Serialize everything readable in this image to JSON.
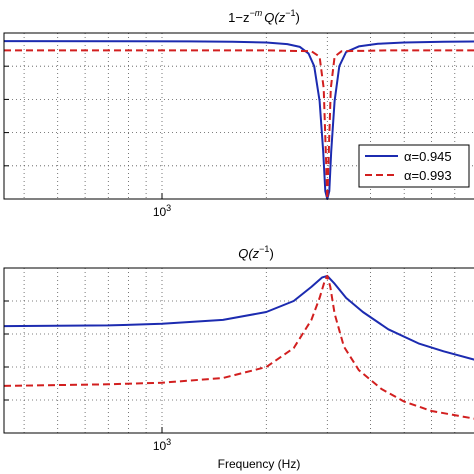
{
  "figure": {
    "xlabel": "Frequency (Hz)"
  },
  "chart_data": [
    {
      "type": "line",
      "title_parts": [
        "1−z",
        "−m",
        "Q(z",
        "−1",
        ")"
      ],
      "xscale": "log",
      "xlim": [
        350,
        8500
      ],
      "ylim": [
        0,
        1.05
      ],
      "grid": true,
      "legend_position": "bottom-right",
      "x_ticks": [
        {
          "base": "10",
          "exp": "3",
          "value": 1000
        }
      ],
      "series": [
        {
          "name": "α=0.945",
          "color": "#1c2bb0",
          "dash": "solid",
          "points": [
            [
              350,
              0.999
            ],
            [
              800,
              0.998
            ],
            [
              1200,
              0.997
            ],
            [
              1600,
              0.995
            ],
            [
              2000,
              0.99
            ],
            [
              2300,
              0.98
            ],
            [
              2500,
              0.962
            ],
            [
              2650,
              0.92
            ],
            [
              2750,
              0.84
            ],
            [
              2850,
              0.62
            ],
            [
              2920,
              0.3
            ],
            [
              2960,
              0.05
            ],
            [
              3000,
              0.0
            ],
            [
              3040,
              0.05
            ],
            [
              3080,
              0.3
            ],
            [
              3150,
              0.62
            ],
            [
              3250,
              0.84
            ],
            [
              3400,
              0.93
            ],
            [
              3700,
              0.965
            ],
            [
              4200,
              0.982
            ],
            [
              5000,
              0.99
            ],
            [
              6500,
              0.995
            ],
            [
              8500,
              0.997
            ]
          ]
        },
        {
          "name": "α=0.993",
          "color": "#d21f1f",
          "dash": "dashed",
          "points": [
            [
              350,
              0.94
            ],
            [
              1000,
              0.94
            ],
            [
              2000,
              0.94
            ],
            [
              2700,
              0.935
            ],
            [
              2850,
              0.9
            ],
            [
              2930,
              0.7
            ],
            [
              2980,
              0.2
            ],
            [
              3000,
              0.0
            ],
            [
              3020,
              0.2
            ],
            [
              3070,
              0.7
            ],
            [
              3150,
              0.9
            ],
            [
              3300,
              0.935
            ],
            [
              4500,
              0.94
            ],
            [
              8500,
              0.94
            ]
          ]
        }
      ]
    },
    {
      "type": "line",
      "title_parts": [
        "Q(z",
        "−1",
        ")"
      ],
      "xscale": "log",
      "xlim": [
        350,
        8500
      ],
      "ylim": [
        0,
        1.05
      ],
      "grid": true,
      "x_ticks": [
        {
          "base": "10",
          "exp": "3",
          "value": 1000
        }
      ],
      "series": [
        {
          "name": "α=0.945",
          "color": "#1c2bb0",
          "dash": "solid",
          "points": [
            [
              350,
              0.68
            ],
            [
              700,
              0.685
            ],
            [
              1000,
              0.695
            ],
            [
              1500,
              0.72
            ],
            [
              2000,
              0.77
            ],
            [
              2400,
              0.84
            ],
            [
              2700,
              0.93
            ],
            [
              2900,
              0.99
            ],
            [
              3000,
              1.0
            ],
            [
              3150,
              0.95
            ],
            [
              3400,
              0.86
            ],
            [
              3800,
              0.77
            ],
            [
              4500,
              0.66
            ],
            [
              5500,
              0.57
            ],
            [
              6500,
              0.52
            ],
            [
              8500,
              0.45
            ]
          ]
        },
        {
          "name": "α=0.993",
          "color": "#d21f1f",
          "dash": "dashed",
          "points": [
            [
              350,
              0.3
            ],
            [
              700,
              0.31
            ],
            [
              1000,
              0.32
            ],
            [
              1500,
              0.35
            ],
            [
              2000,
              0.42
            ],
            [
              2400,
              0.54
            ],
            [
              2700,
              0.72
            ],
            [
              2850,
              0.86
            ],
            [
              2950,
              0.97
            ],
            [
              3000,
              1.0
            ],
            [
              3060,
              0.93
            ],
            [
              3150,
              0.76
            ],
            [
              3350,
              0.55
            ],
            [
              3700,
              0.4
            ],
            [
              4300,
              0.28
            ],
            [
              5000,
              0.2
            ],
            [
              6000,
              0.14
            ],
            [
              8500,
              0.08
            ]
          ]
        }
      ]
    }
  ]
}
